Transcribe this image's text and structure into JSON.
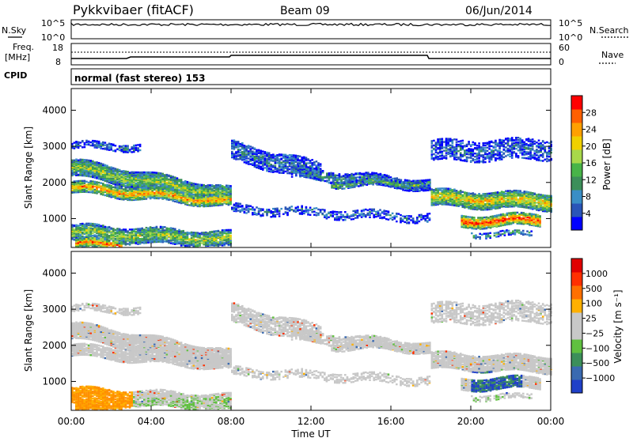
{
  "header": {
    "station": "Pykkvibaer (fitACF)",
    "beam": "Beam 09",
    "date": "06/Jun/2014"
  },
  "summary_panels": {
    "nsky": {
      "label": "N.Sky",
      "ticks": [
        "10^5",
        "10^0"
      ]
    },
    "nsearch": {
      "label": "N.Search",
      "ticks": [
        "10^5",
        "10^0"
      ]
    },
    "freq": {
      "label_line1": "Freq.",
      "label_line2": "[MHz]",
      "ticks": [
        "18",
        "8"
      ]
    },
    "nave": {
      "label": "Nave",
      "ticks": [
        "60",
        "0"
      ]
    },
    "cpid": {
      "label": "CPID",
      "text": "normal (fast stereo) 153"
    }
  },
  "chart_data": [
    {
      "type": "heatmap",
      "name": "power",
      "ylabel": "Slant Range [km]",
      "yticks": [
        "1000",
        "2000",
        "3000",
        "4000"
      ],
      "ylim": [
        200,
        4600
      ],
      "xlim": [
        0,
        24
      ],
      "colorbar_label": "Power [dB]",
      "colorbar_ticks": [
        "28",
        "24",
        "20",
        "16",
        "12",
        "8",
        "4"
      ],
      "colors": [
        "#0000ff",
        "#2a55b8",
        "#3a8ec6",
        "#3c8f5a",
        "#48b448",
        "#a8d84a",
        "#f0d000",
        "#ffa000",
        "#ff6000",
        "#ff0000"
      ]
    },
    {
      "type": "heatmap",
      "name": "velocity",
      "ylabel": "Slant Range [km]",
      "yticks": [
        "1000",
        "2000",
        "3000",
        "4000"
      ],
      "ylim": [
        200,
        4600
      ],
      "xlim": [
        0,
        24
      ],
      "colorbar_label": "Velocity [m s⁻¹]",
      "colorbar_ticks": [
        "1000",
        "500",
        "100",
        "25",
        "−25",
        "−100",
        "−500",
        "−1000"
      ],
      "colors": [
        "#2040c8",
        "#3a6ab0",
        "#3c8f5a",
        "#60c040",
        "#c8c8c8",
        "#c8c8c8",
        "#ffb000",
        "#ff7000",
        "#ff3000",
        "#e00000"
      ]
    }
  ],
  "xaxis": {
    "ticks": [
      "00:00",
      "04:00",
      "08:00",
      "12:00",
      "16:00",
      "20:00",
      "00:00"
    ],
    "label": "Time UT"
  }
}
